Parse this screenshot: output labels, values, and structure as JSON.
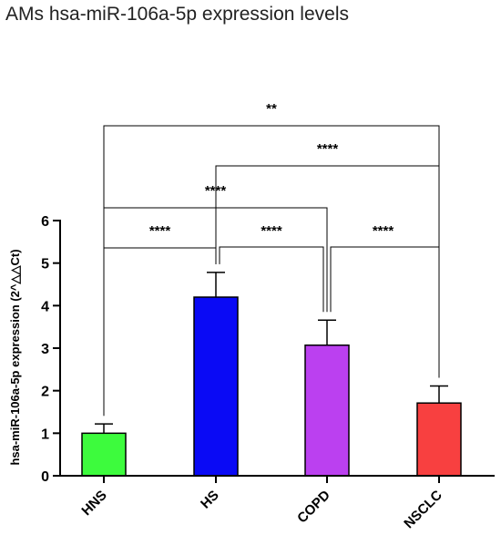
{
  "chart_data": {
    "type": "bar",
    "title": "AMs hsa-miR-106a-5p expression levels",
    "ylabel": "hsa-miR-106a-5p expression (2^△△Ct)",
    "xlabel": "",
    "ylim": [
      0,
      6
    ],
    "yticks": [
      "0",
      "1",
      "2",
      "3",
      "4",
      "5",
      "6"
    ],
    "categories": [
      "HNS",
      "HS",
      "COPD",
      "NSCLC"
    ],
    "values": [
      1.0,
      4.2,
      3.07,
      1.71
    ],
    "errors": [
      0.22,
      0.58,
      0.59,
      0.4
    ],
    "colors": [
      "#3dfb3d",
      "#0a0af5",
      "#bb40f0",
      "#f84040"
    ],
    "grid": false,
    "legend": "none",
    "significance": [
      {
        "from": 0,
        "to": 1,
        "label": "****"
      },
      {
        "from": 1,
        "to": 2,
        "label": "****"
      },
      {
        "from": 2,
        "to": 3,
        "label": "****"
      },
      {
        "from": 0,
        "to": 2,
        "label": "****"
      },
      {
        "from": 1,
        "to": 3,
        "label": "****"
      },
      {
        "from": 0,
        "to": 3,
        "label": "**"
      }
    ]
  }
}
